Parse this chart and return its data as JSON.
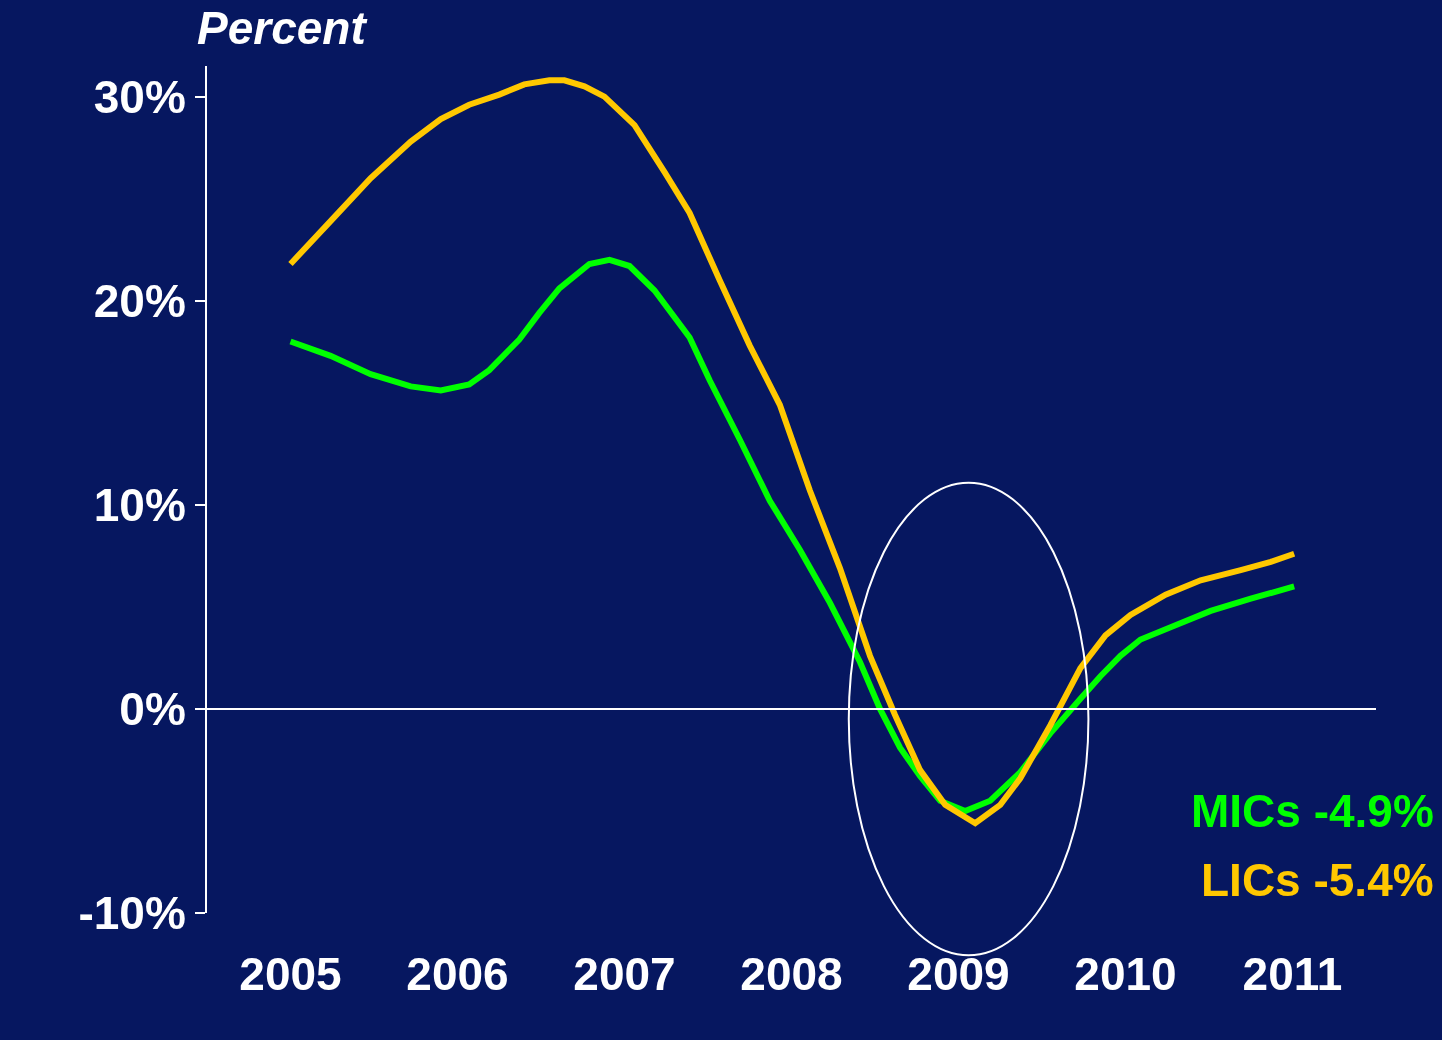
{
  "chart_data": {
    "type": "line",
    "ylabel": "Percent",
    "xlim": [
      2004.5,
      2011.5
    ],
    "xticks": [
      2005,
      2006,
      2007,
      2008,
      2009,
      2010,
      2011
    ],
    "ref_lines": [
      {
        "axis": "y",
        "value": 0,
        "color": "#ffffff"
      }
    ],
    "ylim": [
      -10,
      31.5
    ],
    "yticks": [
      {
        "value": 30,
        "label": "30%"
      },
      {
        "value": 20,
        "label": "20%"
      },
      {
        "value": 10,
        "label": "10%"
      },
      {
        "value": 0,
        "label": "0%"
      },
      {
        "value": -10,
        "label": "-10%"
      }
    ],
    "grid": false,
    "legend": false,
    "marker": "none",
    "line_style": "solid",
    "series": [
      {
        "name": "MICs -4.9%",
        "color": "#00ff00",
        "x": [
          2005.0,
          2005.24,
          2005.48,
          2005.72,
          2005.9,
          2006.07,
          2006.19,
          2006.37,
          2006.49,
          2006.61,
          2006.79,
          2006.91,
          2007.03,
          2007.18,
          2007.39,
          2007.51,
          2007.69,
          2007.87,
          2008.05,
          2008.23,
          2008.41,
          2008.53,
          2008.65,
          2008.77,
          2008.89,
          2009.04,
          2009.19,
          2009.37,
          2009.55,
          2009.73,
          2009.85,
          2009.97,
          2010.09,
          2010.27,
          2010.51,
          2010.75,
          2011.01
        ],
        "values": [
          18.0,
          17.3,
          16.4,
          15.8,
          15.6,
          15.9,
          16.6,
          18.1,
          19.4,
          20.6,
          21.8,
          22.0,
          21.7,
          20.5,
          18.2,
          16.1,
          13.2,
          10.2,
          7.8,
          5.2,
          2.3,
          0.0,
          -1.9,
          -3.3,
          -4.5,
          -5.0,
          -4.5,
          -3.1,
          -1.2,
          0.5,
          1.6,
          2.6,
          3.4,
          4.0,
          4.8,
          5.4,
          6.0
        ]
      },
      {
        "name": "LICs -5.4%",
        "color": "#ffc800",
        "x": [
          2005.0,
          2005.24,
          2005.48,
          2005.72,
          2005.9,
          2006.07,
          2006.25,
          2006.4,
          2006.55,
          2006.64,
          2006.76,
          2006.88,
          2007.06,
          2007.24,
          2007.39,
          2007.57,
          2007.75,
          2007.93,
          2008.11,
          2008.29,
          2008.47,
          2008.62,
          2008.77,
          2008.92,
          2009.1,
          2009.25,
          2009.37,
          2009.55,
          2009.73,
          2009.88,
          2010.03,
          2010.24,
          2010.45,
          2010.69,
          2010.87,
          2011.01
        ],
        "values": [
          21.8,
          23.9,
          26.0,
          27.8,
          28.9,
          29.6,
          30.1,
          30.6,
          30.8,
          30.8,
          30.5,
          30.0,
          28.6,
          26.3,
          24.3,
          21.0,
          17.8,
          14.9,
          10.7,
          6.9,
          2.6,
          -0.3,
          -3.0,
          -4.7,
          -5.6,
          -4.7,
          -3.4,
          -0.8,
          2.0,
          3.6,
          4.6,
          5.6,
          6.3,
          6.8,
          7.2,
          7.6
        ]
      }
    ]
  }
}
